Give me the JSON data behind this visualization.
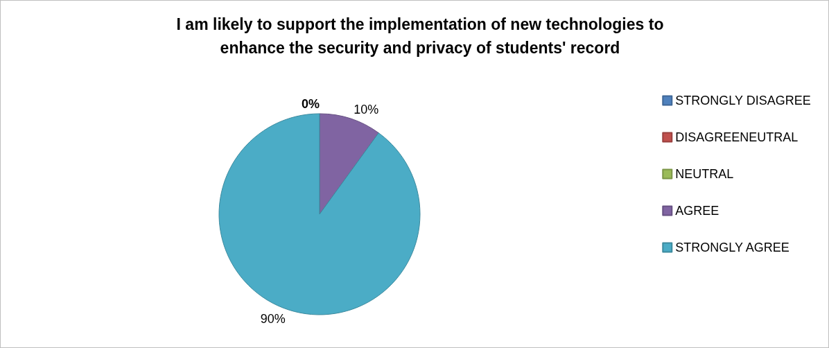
{
  "chart_data": {
    "type": "pie",
    "title": "I am likely to support the implementation of new technologies to\nenhance the security and privacy of students' record",
    "categories": [
      "STRONGLY DISAGREE",
      "DISAGREENEUTRAL",
      "NEUTRAL",
      "AGREE",
      "STRONGLY AGREE"
    ],
    "values": [
      0,
      0,
      0,
      10,
      90
    ],
    "colors": [
      "#4f81bd",
      "#c0504d",
      "#9bbb59",
      "#8064a2",
      "#4bacc6"
    ],
    "value_labels": [
      "0%",
      null,
      null,
      "10%",
      "90%"
    ],
    "legend": "right"
  }
}
